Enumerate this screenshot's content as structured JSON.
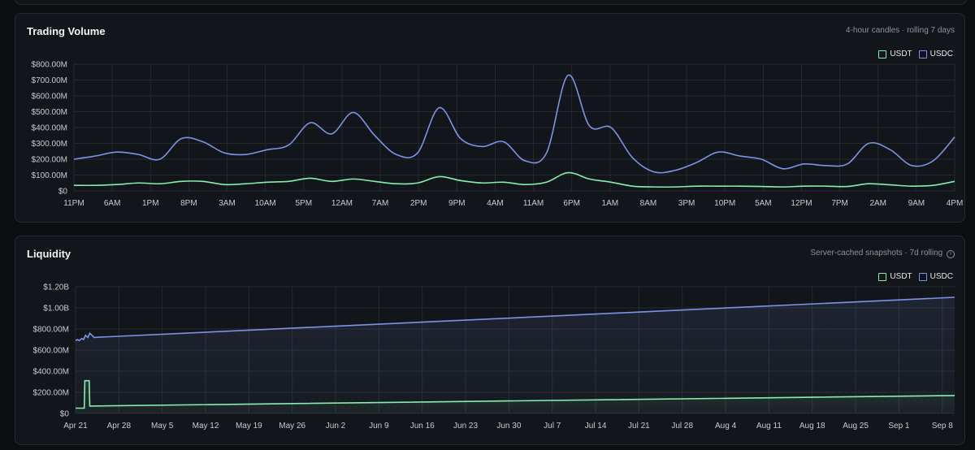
{
  "colors": {
    "usdt": "#86efac",
    "usdc": "#7c93e8"
  },
  "volume": {
    "title": "Trading Volume",
    "subtitle": "4-hour candles · rolling 7 days",
    "legend": [
      "USDT",
      "USDC"
    ]
  },
  "liquidity": {
    "title": "Liquidity",
    "subtitle": "Server-cached snapshots · 7d rolling",
    "info_icon": "info-icon",
    "legend": [
      "USDT",
      "USDC"
    ]
  },
  "chart_data": [
    {
      "type": "line",
      "title": "Trading Volume",
      "xlabel": "",
      "ylabel": "",
      "ylim": [
        0,
        800000000
      ],
      "y_ticks": [
        "$0",
        "$100.00M",
        "$200.00M",
        "$300.00M",
        "$400.00M",
        "$500.00M",
        "$600.00M",
        "$700.00M",
        "$800.00M"
      ],
      "x_ticks": [
        "11PM",
        "6AM",
        "1PM",
        "8PM",
        "3AM",
        "10AM",
        "5PM",
        "12AM",
        "7AM",
        "2PM",
        "9PM",
        "4AM",
        "11AM",
        "6PM",
        "1AM",
        "8AM",
        "3PM",
        "10PM",
        "5AM",
        "12PM",
        "7PM",
        "2AM",
        "9AM",
        "4PM"
      ],
      "grid": true,
      "legend_position": "top-right",
      "series": [
        {
          "name": "USDC",
          "color": "#7c93e8",
          "values": [
            200,
            220,
            245,
            230,
            200,
            330,
            310,
            240,
            230,
            260,
            290,
            430,
            360,
            495,
            350,
            230,
            240,
            525,
            330,
            280,
            310,
            190,
            240,
            730,
            410,
            400,
            210,
            120,
            130,
            180,
            245,
            220,
            200,
            140,
            170,
            160,
            170,
            300,
            260,
            160,
            190,
            340
          ]
        },
        {
          "name": "USDT",
          "color": "#86efac",
          "values": [
            35,
            35,
            40,
            50,
            45,
            60,
            60,
            40,
            45,
            55,
            60,
            80,
            60,
            75,
            60,
            45,
            50,
            90,
            65,
            50,
            55,
            40,
            55,
            115,
            75,
            55,
            30,
            25,
            25,
            30,
            30,
            30,
            28,
            25,
            30,
            30,
            28,
            45,
            38,
            30,
            35,
            60
          ]
        }
      ]
    },
    {
      "type": "area",
      "title": "Liquidity",
      "xlabel": "",
      "ylabel": "",
      "ylim": [
        0,
        1200000000
      ],
      "y_ticks": [
        "$0",
        "$200.00M",
        "$400.00M",
        "$600.00M",
        "$800.00M",
        "$1.00B",
        "$1.20B"
      ],
      "x_ticks": [
        "Apr 21",
        "Apr 28",
        "May 5",
        "May 12",
        "May 19",
        "May 26",
        "Jun 2",
        "Jun 9",
        "Jun 16",
        "Jun 23",
        "Jun 30",
        "Jul 7",
        "Jul 14",
        "Jul 21",
        "Jul 28",
        "Aug 4",
        "Aug 11",
        "Aug 18",
        "Aug 25",
        "Sep 1",
        "Sep 8"
      ],
      "grid": true,
      "legend_position": "top-right",
      "series": [
        {
          "name": "USDC",
          "color": "#7c93e8",
          "x_days": [
            0,
            0.3,
            0.6,
            1,
            1.3,
            1.6,
            2,
            2.3,
            3,
            142
          ],
          "values": [
            690,
            700,
            690,
            710,
            700,
            740,
            720,
            760,
            720,
            1100
          ]
        },
        {
          "name": "USDT",
          "color": "#86efac",
          "x_days": [
            0,
            1.4,
            1.5,
            2.2,
            2.3,
            142
          ],
          "values": [
            50,
            50,
            310,
            310,
            70,
            170
          ]
        }
      ]
    }
  ]
}
